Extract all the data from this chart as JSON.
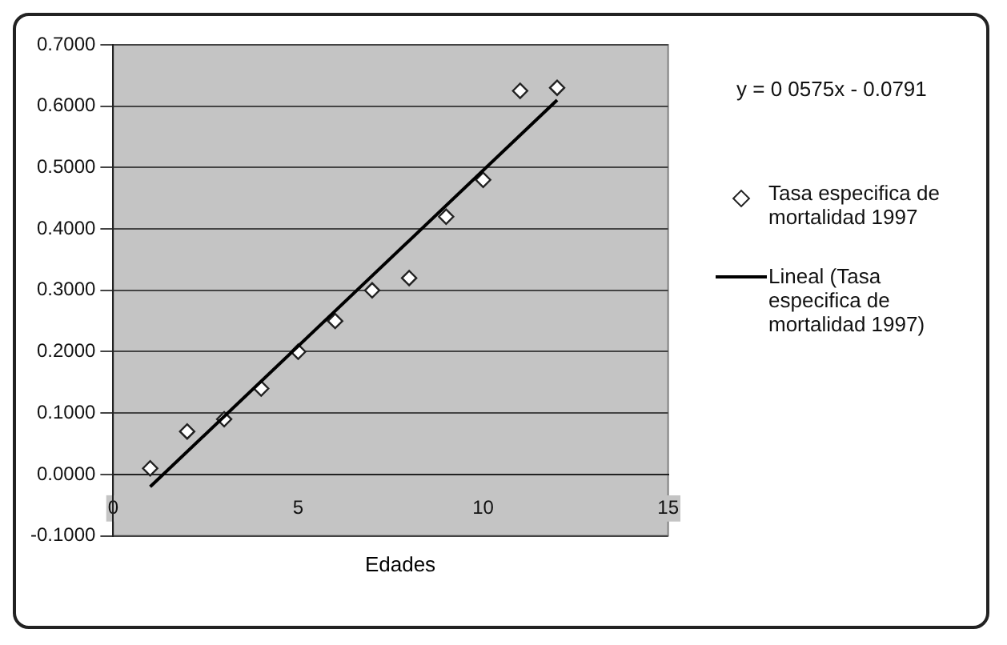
{
  "chart_data": {
    "type": "scatter",
    "xlabel": "Edades",
    "annotations": [
      "y = 0 0575x - 0.0791"
    ],
    "series": [
      {
        "name": "Tasa especifica de mortalidad 1997",
        "marker": "diamond",
        "color": "#ffffff",
        "x": [
          1,
          2,
          3,
          4,
          5,
          6,
          7,
          8,
          9,
          10,
          11,
          12
        ],
        "values": [
          0.01,
          0.07,
          0.09,
          0.14,
          0.2,
          0.25,
          0.3,
          0.32,
          0.42,
          0.48,
          0.625,
          0.63
        ]
      },
      {
        "name": "Lineal (Tasa especifica de mortalidad 1997)",
        "type": "line",
        "marker": "none",
        "color": "#000000",
        "x": [
          1,
          12
        ],
        "values": [
          -0.02,
          0.61
        ]
      }
    ],
    "legend": "right",
    "grid": "y",
    "xlim": [
      0,
      15
    ],
    "xticks": [
      0,
      5,
      10,
      15
    ],
    "ylim": [
      -0.1,
      0.7
    ],
    "yticks": [
      {
        "value": -0.1,
        "label": "-0.1000"
      },
      {
        "value": 0,
        "label": "0.0000"
      },
      {
        "value": 0.1,
        "label": "0.1000"
      },
      {
        "value": 0.2,
        "label": "0.2000"
      },
      {
        "value": 0.3,
        "label": "0.3000"
      },
      {
        "value": 0.4,
        "label": "0.4000"
      },
      {
        "value": 0.5,
        "label": "0.5000"
      },
      {
        "value": 0.6,
        "label": "0.6000"
      },
      {
        "value": 0.7,
        "label": "0.7000"
      }
    ]
  }
}
